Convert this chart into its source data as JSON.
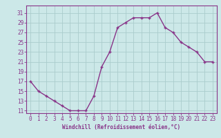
{
  "x": [
    0,
    1,
    2,
    3,
    4,
    5,
    6,
    7,
    8,
    9,
    10,
    11,
    12,
    13,
    14,
    15,
    16,
    17,
    18,
    19,
    20,
    21,
    22,
    23
  ],
  "y": [
    17,
    15,
    14,
    13,
    12,
    11,
    11,
    11,
    14,
    20,
    23,
    28,
    29,
    30,
    30,
    30,
    31,
    28,
    27,
    25,
    24,
    23,
    21,
    21
  ],
  "line_color": "#883388",
  "marker": "+",
  "bg_color": "#cce8e8",
  "grid_color": "#aacccc",
  "xlabel": "Windchill (Refroidissement éolien,°C)",
  "xlabel_color": "#883388",
  "tick_color": "#883388",
  "ylim_min": 10.5,
  "ylim_max": 32.5,
  "yticks": [
    11,
    13,
    15,
    17,
    19,
    21,
    23,
    25,
    27,
    29,
    31
  ],
  "xlim_min": -0.5,
  "xlim_max": 23.5,
  "xticks": [
    0,
    1,
    2,
    3,
    4,
    5,
    6,
    7,
    8,
    9,
    10,
    11,
    12,
    13,
    14,
    15,
    16,
    17,
    18,
    19,
    20,
    21,
    22,
    23
  ],
  "xlabel_fontsize": 5.5,
  "tick_fontsize": 5.5,
  "linewidth": 1.0,
  "markersize": 3.5,
  "markeredgewidth": 1.0
}
